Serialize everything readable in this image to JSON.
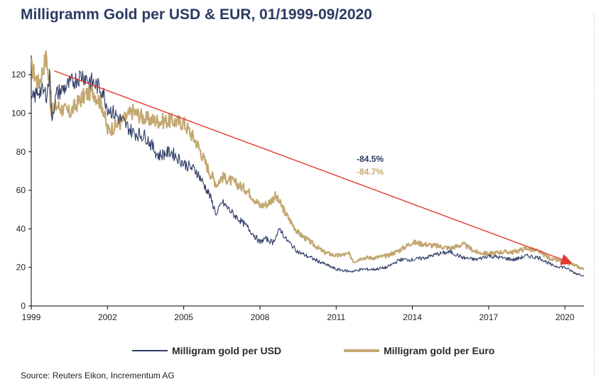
{
  "title": "Milligramm Gold per USD & EUR, 01/1999-09/2020",
  "source": "Source: Reuters Eikon, Incrementum AG",
  "colors": {
    "usd": "#2c3a63",
    "euro": "#c4a872",
    "trend": "#e03a2e",
    "title": "#2c3a63"
  },
  "chart_data": {
    "type": "line",
    "title": "Milligramm Gold per USD & EUR, 01/1999-09/2020",
    "xlabel": "",
    "ylabel": "",
    "xlim": [
      1999,
      2020.75
    ],
    "ylim": [
      0,
      130
    ],
    "x_ticks": [
      1999,
      2002,
      2005,
      2008,
      2011,
      2014,
      2017,
      2020
    ],
    "x_tick_labels": [
      "1999",
      "2002",
      "2005",
      "2008",
      "2011",
      "2014",
      "2017",
      "2020"
    ],
    "y_ticks": [
      0,
      20,
      40,
      60,
      80,
      100,
      120
    ],
    "y_tick_labels": [
      "0",
      "20",
      "40",
      "60",
      "80",
      "100",
      "120"
    ],
    "legend_position": "bottom",
    "grid": false,
    "series": [
      {
        "name": "Milligram gold per USD",
        "x": [
          1999.0,
          1999.3,
          1999.6,
          1999.75,
          1999.8,
          2000.0,
          2000.5,
          2001.0,
          2001.4,
          2001.8,
          2002.0,
          2002.5,
          2003.0,
          2003.5,
          2004.0,
          2004.5,
          2005.0,
          2005.5,
          2006.0,
          2006.3,
          2006.5,
          2007.0,
          2007.5,
          2008.0,
          2008.2,
          2008.5,
          2008.8,
          2009.0,
          2009.5,
          2010.0,
          2010.5,
          2011.0,
          2011.5,
          2011.7,
          2012.0,
          2012.5,
          2013.0,
          2013.5,
          2014.0,
          2014.5,
          2015.0,
          2015.5,
          2016.0,
          2016.5,
          2017.0,
          2017.5,
          2018.0,
          2018.5,
          2019.0,
          2019.5,
          2020.0,
          2020.4,
          2020.75
        ],
        "y": [
          106,
          112,
          110,
          120,
          98,
          110,
          115,
          120,
          116,
          112,
          103,
          97,
          90,
          88,
          78,
          80,
          74,
          70,
          58,
          47,
          54,
          47,
          41,
          33,
          35,
          33,
          40,
          35,
          28,
          25,
          22,
          19,
          18,
          18,
          19,
          19,
          20,
          24,
          24,
          25,
          27,
          28,
          25,
          24,
          26,
          25,
          24,
          26,
          25,
          21,
          20,
          17,
          16
        ]
      },
      {
        "name": "Milligram gold per Euro",
        "x": [
          1999.0,
          1999.3,
          1999.6,
          1999.8,
          2000.0,
          2000.5,
          2001.0,
          2001.4,
          2001.8,
          2002.0,
          2002.5,
          2003.0,
          2003.5,
          2004.0,
          2004.5,
          2005.0,
          2005.5,
          2006.0,
          2006.3,
          2006.5,
          2007.0,
          2007.5,
          2008.0,
          2008.3,
          2008.6,
          2008.9,
          2009.0,
          2009.5,
          2010.0,
          2010.5,
          2011.0,
          2011.5,
          2011.7,
          2012.0,
          2012.5,
          2013.0,
          2013.5,
          2014.0,
          2014.5,
          2015.0,
          2015.5,
          2016.0,
          2016.5,
          2017.0,
          2017.5,
          2018.0,
          2018.5,
          2019.0,
          2019.5,
          2020.0,
          2020.4,
          2020.75
        ],
        "y": [
          124,
          115,
          130,
          100,
          104,
          100,
          108,
          112,
          104,
          91,
          95,
          101,
          97,
          96,
          96,
          95,
          85,
          70,
          63,
          67,
          64,
          60,
          52,
          53,
          57,
          51,
          48,
          38,
          33,
          28,
          26,
          27,
          23,
          25,
          25,
          26,
          29,
          33,
          32,
          31,
          30,
          32,
          28,
          27,
          28,
          28,
          30,
          28,
          24,
          23,
          21,
          19
        ]
      }
    ],
    "annotations": [
      {
        "text": "-84.5%",
        "series": "Milligram gold per USD"
      },
      {
        "text": "-84.7%",
        "series": "Milligram gold per Euro"
      }
    ],
    "trend_arrow": {
      "from": [
        1999.9,
        122
      ],
      "to": [
        2020.3,
        22
      ]
    }
  },
  "legend": {
    "usd_label": "Milligram gold per USD",
    "euro_label": "Milligram gold per Euro"
  }
}
